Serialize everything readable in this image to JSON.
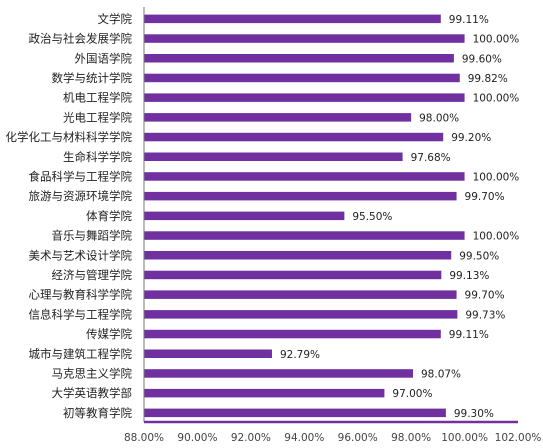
{
  "chart_data": {
    "type": "bar",
    "orientation": "horizontal",
    "categories": [
      "文学院",
      "政治与社会发展学院",
      "外国语学院",
      "数学与统计学院",
      "机电工程学院",
      "光电工程学院",
      "化学化工与材料科学学院",
      "生命科学学院",
      "食品科学与工程学院",
      "旅游与资源环境学院",
      "体育学院",
      "音乐与舞蹈学院",
      "美术与艺术设计学院",
      "经济与管理学院",
      "心理与教育科学学院",
      "信息科学与工程学院",
      "传媒学院",
      "城市与建筑工程学院",
      "马克思主义学院",
      "大学英语教学部",
      "初等教育学院"
    ],
    "values": [
      99.11,
      100.0,
      99.6,
      99.82,
      100.0,
      98.0,
      99.2,
      97.68,
      100.0,
      99.7,
      95.5,
      100.0,
      99.5,
      99.13,
      99.7,
      99.73,
      99.11,
      92.79,
      98.07,
      97.0,
      99.3
    ],
    "value_labels": [
      "99.11%",
      "100.00%",
      "99.60%",
      "99.82%",
      "100.00%",
      "98.00%",
      "99.20%",
      "97.68%",
      "100.00%",
      "99.70%",
      "95.50%",
      "100.00%",
      "99.50%",
      "99.13%",
      "99.70%",
      "99.73%",
      "99.11%",
      "92.79%",
      "98.07%",
      "97.00%",
      "99.30%"
    ],
    "x_ticks": [
      88,
      90,
      92,
      94,
      96,
      98,
      100,
      102
    ],
    "x_tick_labels": [
      "88.00%",
      "90.00%",
      "92.00%",
      "94.00%",
      "96.00%",
      "98.00%",
      "100.00%",
      "102.00%"
    ],
    "xlim": [
      88,
      102
    ],
    "title": "",
    "xlabel": "",
    "ylabel": "",
    "grid": false,
    "legend": "none",
    "bar_color": "#7030A0"
  }
}
